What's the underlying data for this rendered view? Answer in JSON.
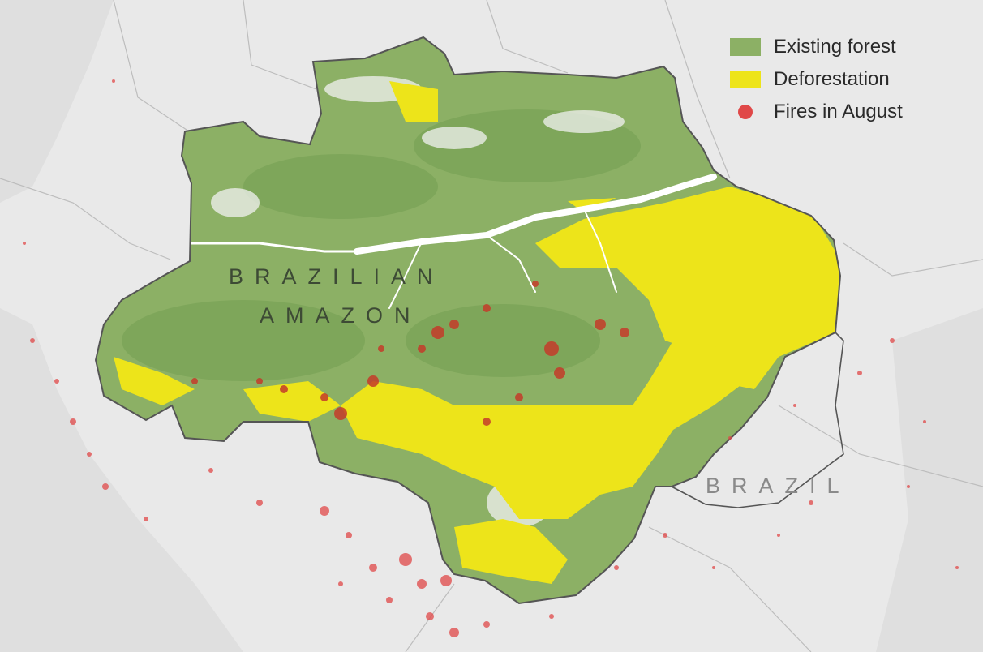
{
  "legend": {
    "forest": {
      "label": "Existing forest",
      "color": "#8cb065"
    },
    "deforestation": {
      "label": "Deforestation",
      "color": "#ede41a"
    },
    "fires": {
      "label": "Fires in August",
      "color": "#e04848"
    }
  },
  "labels": {
    "region_line1": "BRAZILIAN",
    "region_line2": "AMAZON",
    "country": "BRAZIL"
  },
  "colors": {
    "background": "#e9e9e9",
    "border": "#555555",
    "forest": "#8cb065",
    "forest_dark": "#6e9a4c",
    "deforestation": "#ede41a",
    "fire": "#e04848",
    "river": "#ffffff"
  }
}
